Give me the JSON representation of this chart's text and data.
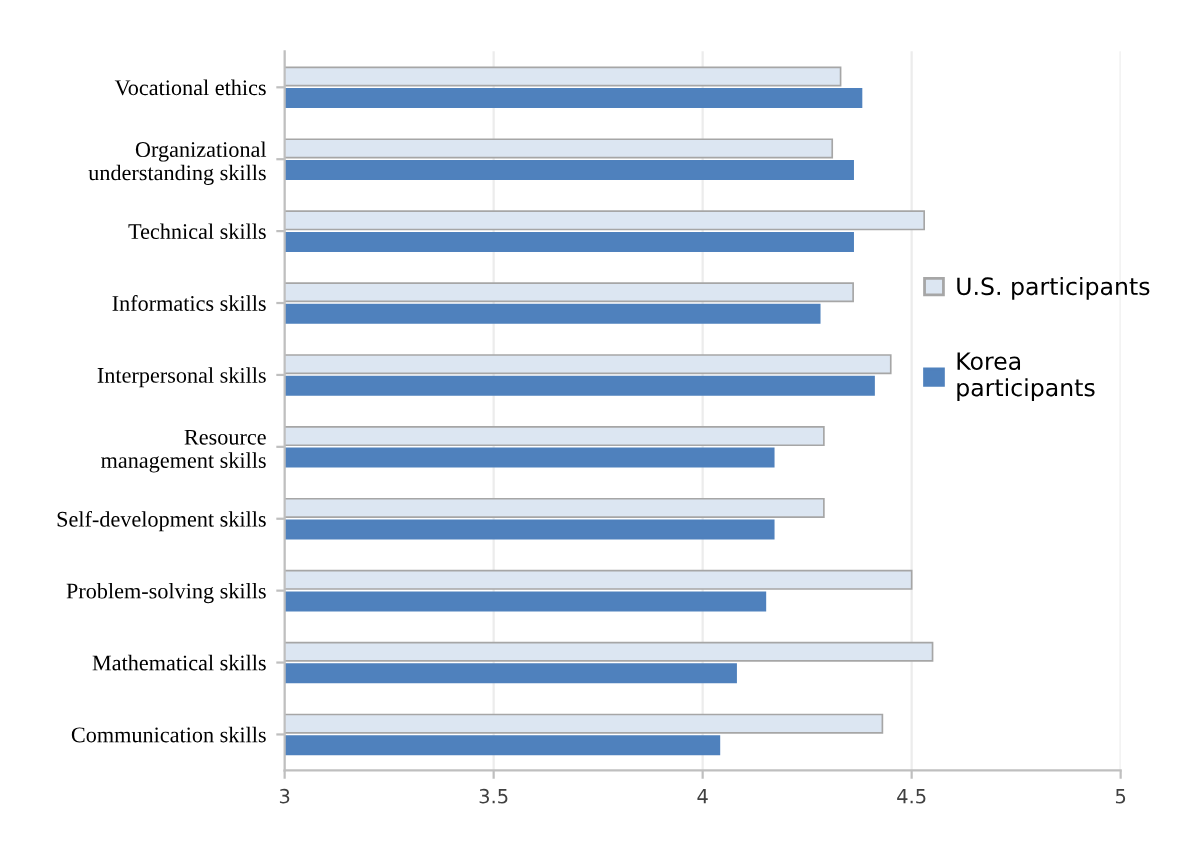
{
  "chart_data": {
    "type": "bar",
    "orientation": "horizontal",
    "categories": [
      "Vocational ethics",
      "Organizational\nunderstanding skills",
      "Technical skills",
      "Informatics skills",
      "Interpersonal skills",
      "Resource\nmanagement skills",
      "Self-development skills",
      "Problem-solving skills",
      "Mathematical skills",
      "Communication skills"
    ],
    "series": [
      {
        "name": "U.S. participants",
        "color": "#dce6f2",
        "values": [
          4.33,
          4.31,
          4.53,
          4.36,
          4.45,
          4.29,
          4.29,
          4.5,
          4.55,
          4.43
        ]
      },
      {
        "name": "Korea\nparticipants",
        "color": "#4f81bd",
        "values": [
          4.38,
          4.36,
          4.36,
          4.28,
          4.41,
          4.17,
          4.17,
          4.15,
          4.08,
          4.04
        ]
      }
    ],
    "xlim": [
      3,
      5
    ],
    "xticks": [
      3,
      3.5,
      4,
      4.5,
      5
    ],
    "grid": "x",
    "legend": "right"
  }
}
